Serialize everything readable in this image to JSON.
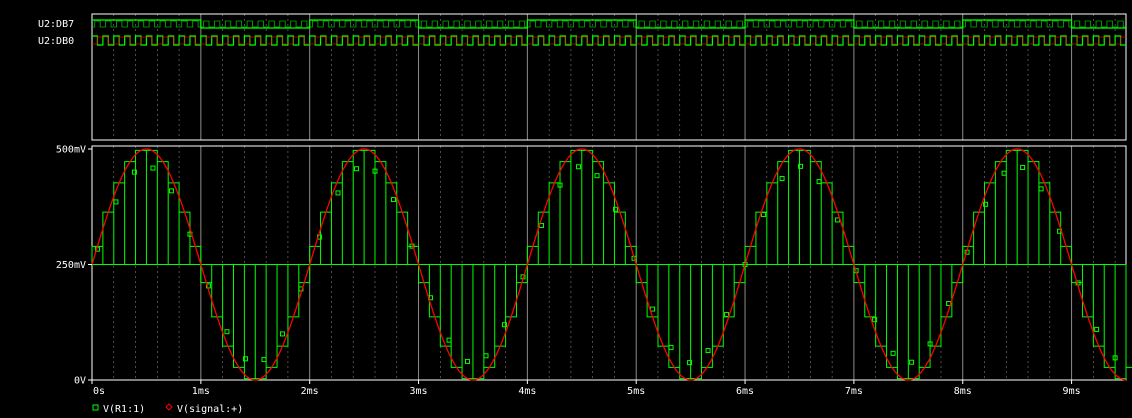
{
  "colors": {
    "background": "#000000",
    "axis": "#ffffff",
    "grid": "#ffffff",
    "trace_r1": "#00ff00",
    "trace_signal": "#ff0000",
    "text": "#ffffff"
  },
  "digital_panel": {
    "signals": [
      "U2:DB7",
      "U2:DB0"
    ],
    "chart_data": {
      "type": "line",
      "description_units": "time in ms; logic level 0/1",
      "series": [
        {
          "name": "U2:DB7",
          "period_ms": 2.0,
          "high_fraction": 0.5
        },
        {
          "name": "U2:DB0",
          "period_ms": 0.1,
          "high_fraction": 0.5
        }
      ],
      "xlim": [
        0,
        9.5
      ]
    }
  },
  "chart_data": {
    "type": "line",
    "x_tick_labels": [
      "0s",
      "1ms",
      "2ms",
      "3ms",
      "4ms",
      "5ms",
      "6ms",
      "7ms",
      "8ms",
      "9ms"
    ],
    "x_ticks_ms": [
      0,
      1,
      2,
      3,
      4,
      5,
      6,
      7,
      8,
      9
    ],
    "y_tick_labels": [
      "500mV",
      "250mV",
      "0V"
    ],
    "y_ticks_mv": [
      500,
      250,
      0
    ],
    "xlim": [
      0,
      9.5
    ],
    "ylim": [
      0,
      500
    ],
    "grid": true,
    "legend": [
      "V(R1:1)",
      "V(signal:+)"
    ],
    "series": [
      {
        "name": "V(R1:1)",
        "kind": "sampled-staircase",
        "sample_period_ms": 0.1,
        "offset_mv": 250,
        "amplitude_mv": 250,
        "frequency_khz": 0.5
      },
      {
        "name": "V(signal:+)",
        "kind": "sine",
        "offset_mv": 250,
        "amplitude_mv": 250,
        "frequency_khz": 0.5
      }
    ]
  }
}
